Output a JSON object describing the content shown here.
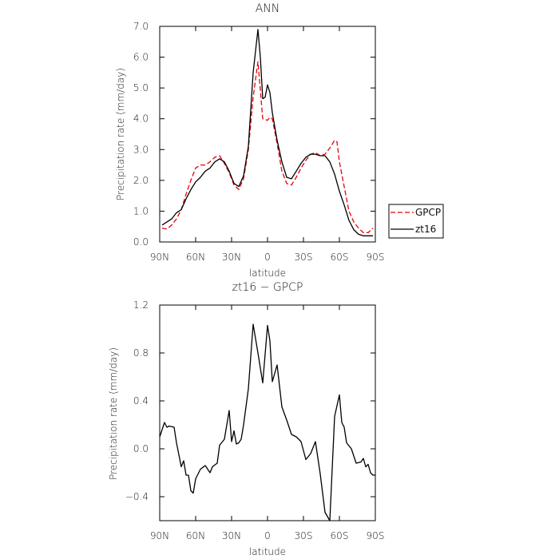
{
  "chart_data": [
    {
      "type": "line",
      "title": "ANN",
      "xlabel": "latitude",
      "ylabel": "Precipitation rate (mm/day)",
      "xlim": [
        90,
        -90
      ],
      "ylim": [
        0,
        7
      ],
      "xticks": [
        90,
        60,
        30,
        0,
        -30,
        -60,
        -90
      ],
      "xticklabels": [
        "90N",
        "60N",
        "30N",
        "0",
        "30S",
        "60S",
        "90S"
      ],
      "yticks": [
        0,
        1,
        2,
        3,
        4,
        5,
        6,
        7
      ],
      "yticklabels": [
        "0.0",
        "1.0",
        "2.0",
        "3.0",
        "4.0",
        "5.0",
        "6.0",
        "7.0"
      ],
      "legend": {
        "position": "right",
        "entries": [
          "GPCP",
          "zt16"
        ]
      },
      "series": [
        {
          "name": "GPCP",
          "color": "#e8000b",
          "dash": "dashed",
          "x": [
            88,
            84,
            80,
            76,
            72,
            68,
            64,
            60,
            56,
            52,
            48,
            44,
            40,
            36,
            32,
            28,
            24,
            20,
            16,
            12,
            8,
            4,
            0,
            -2,
            -4,
            -8,
            -12,
            -16,
            -20,
            -24,
            -28,
            -32,
            -36,
            -40,
            -44,
            -48,
            -52,
            -56,
            -58,
            -60,
            -64,
            -68,
            -72,
            -76,
            -80,
            -84,
            -88
          ],
          "y": [
            0.45,
            0.42,
            0.55,
            0.75,
            1.05,
            1.55,
            2.0,
            2.4,
            2.5,
            2.5,
            2.6,
            2.75,
            2.8,
            2.55,
            2.25,
            1.85,
            1.7,
            2.05,
            3.0,
            4.7,
            5.85,
            4.0,
            3.95,
            4.05,
            4.0,
            3.2,
            2.3,
            1.9,
            1.85,
            2.1,
            2.4,
            2.65,
            2.85,
            2.9,
            2.8,
            2.85,
            3.05,
            3.3,
            3.25,
            2.6,
            1.8,
            1.0,
            0.65,
            0.45,
            0.3,
            0.3,
            0.45
          ]
        },
        {
          "name": "zt16",
          "color": "#000000",
          "dash": "solid",
          "x": [
            88,
            84,
            80,
            76,
            72,
            68,
            64,
            60,
            56,
            52,
            48,
            44,
            40,
            36,
            32,
            28,
            24,
            20,
            16,
            12,
            8,
            6,
            4,
            2,
            0,
            -2,
            -4,
            -8,
            -12,
            -16,
            -20,
            -24,
            -28,
            -32,
            -36,
            -40,
            -44,
            -48,
            -52,
            -56,
            -60,
            -64,
            -68,
            -72,
            -76,
            -80,
            -84,
            -88
          ],
          "y": [
            0.55,
            0.65,
            0.75,
            0.95,
            1.05,
            1.4,
            1.7,
            1.95,
            2.1,
            2.3,
            2.4,
            2.6,
            2.7,
            2.6,
            2.3,
            1.9,
            1.8,
            2.15,
            3.1,
            5.5,
            6.9,
            6.0,
            4.65,
            4.7,
            5.1,
            4.85,
            4.2,
            3.3,
            2.6,
            2.1,
            2.05,
            2.3,
            2.55,
            2.75,
            2.85,
            2.85,
            2.8,
            2.8,
            2.6,
            2.2,
            1.65,
            1.2,
            0.7,
            0.4,
            0.25,
            0.2,
            0.2,
            0.2
          ]
        }
      ]
    },
    {
      "type": "line",
      "title": "zt16 − GPCP",
      "xlabel": "latitude",
      "ylabel": "Precipitation rate (mm/day)",
      "xlim": [
        90,
        -90
      ],
      "ylim": [
        -0.6,
        1.2
      ],
      "xticks": [
        90,
        60,
        30,
        0,
        -30,
        -60,
        -90
      ],
      "xticklabels": [
        "90N",
        "60N",
        "30N",
        "0",
        "30S",
        "60S",
        "90S"
      ],
      "yticks": [
        -0.4,
        0.0,
        0.4,
        0.8,
        1.2
      ],
      "yticklabels": [
        "−0.4",
        "0.0",
        "0.4",
        "0.8",
        "1.2"
      ],
      "series": [
        {
          "color": "#000000",
          "dash": "solid",
          "x": [
            90,
            86,
            84,
            82,
            78,
            76,
            72,
            70,
            68,
            66,
            64,
            62,
            60,
            56,
            52,
            48,
            46,
            42,
            40,
            36,
            32,
            30,
            28,
            26,
            24,
            22,
            20,
            16,
            12,
            8,
            4,
            0,
            -2,
            -4,
            -8,
            -12,
            -16,
            -20,
            -24,
            -28,
            -32,
            -36,
            -40,
            -44,
            -48,
            -52,
            -56,
            -60,
            -62,
            -64,
            -66,
            -70,
            -74,
            -78,
            -80,
            -82,
            -84,
            -86,
            -88,
            -90
          ],
          "y": [
            0.1,
            0.22,
            0.18,
            0.19,
            0.18,
            0.05,
            -0.15,
            -0.1,
            -0.22,
            -0.22,
            -0.35,
            -0.37,
            -0.25,
            -0.17,
            -0.14,
            -0.2,
            -0.15,
            -0.12,
            0.03,
            0.08,
            0.32,
            0.06,
            0.15,
            0.04,
            0.05,
            0.08,
            0.2,
            0.5,
            1.04,
            0.8,
            0.55,
            1.03,
            0.9,
            0.56,
            0.7,
            0.35,
            0.24,
            0.12,
            0.1,
            0.06,
            -0.09,
            -0.04,
            0.06,
            -0.21,
            -0.53,
            -0.6,
            0.27,
            0.45,
            0.22,
            0.18,
            0.05,
            0.0,
            -0.12,
            -0.11,
            -0.08,
            -0.15,
            -0.13,
            -0.2,
            -0.22,
            -0.22
          ]
        }
      ]
    }
  ]
}
